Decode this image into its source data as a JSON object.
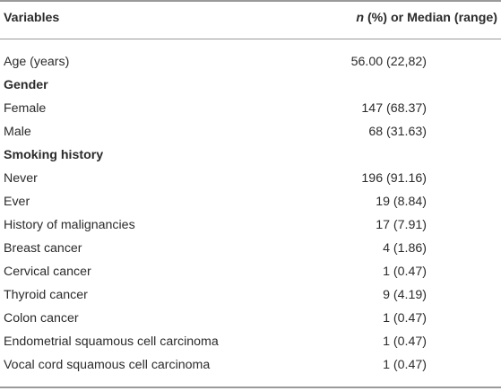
{
  "table": {
    "header": {
      "variable": "Variables",
      "value_italic": "n",
      "value_rest": " (%) or Median (range)"
    },
    "rows": [
      {
        "label": "Age (years)",
        "value": "56.00 (22,82)"
      },
      {
        "label": "Gender",
        "value": ""
      },
      {
        "label": "Female",
        "value": "147 (68.37)"
      },
      {
        "label": "Male",
        "value": "68 (31.63)"
      },
      {
        "label": "Smoking history",
        "value": ""
      },
      {
        "label": "Never",
        "value": "196 (91.16)"
      },
      {
        "label": "Ever",
        "value": "19 (8.84)"
      },
      {
        "label": "History of malignancies",
        "value": "17 (7.91)"
      },
      {
        "label": "Breast cancer",
        "value": "4 (1.86)"
      },
      {
        "label": "Cervical cancer",
        "value": "1 (0.47)"
      },
      {
        "label": "Thyroid cancer",
        "value": "9 (4.19)"
      },
      {
        "label": "Colon cancer",
        "value": "1 (0.47)"
      },
      {
        "label": "Endometrial squamous cell carcinoma",
        "value": "1 (0.47)"
      },
      {
        "label": "Vocal cord squamous cell carcinoma",
        "value": "1 (0.47)"
      }
    ]
  }
}
